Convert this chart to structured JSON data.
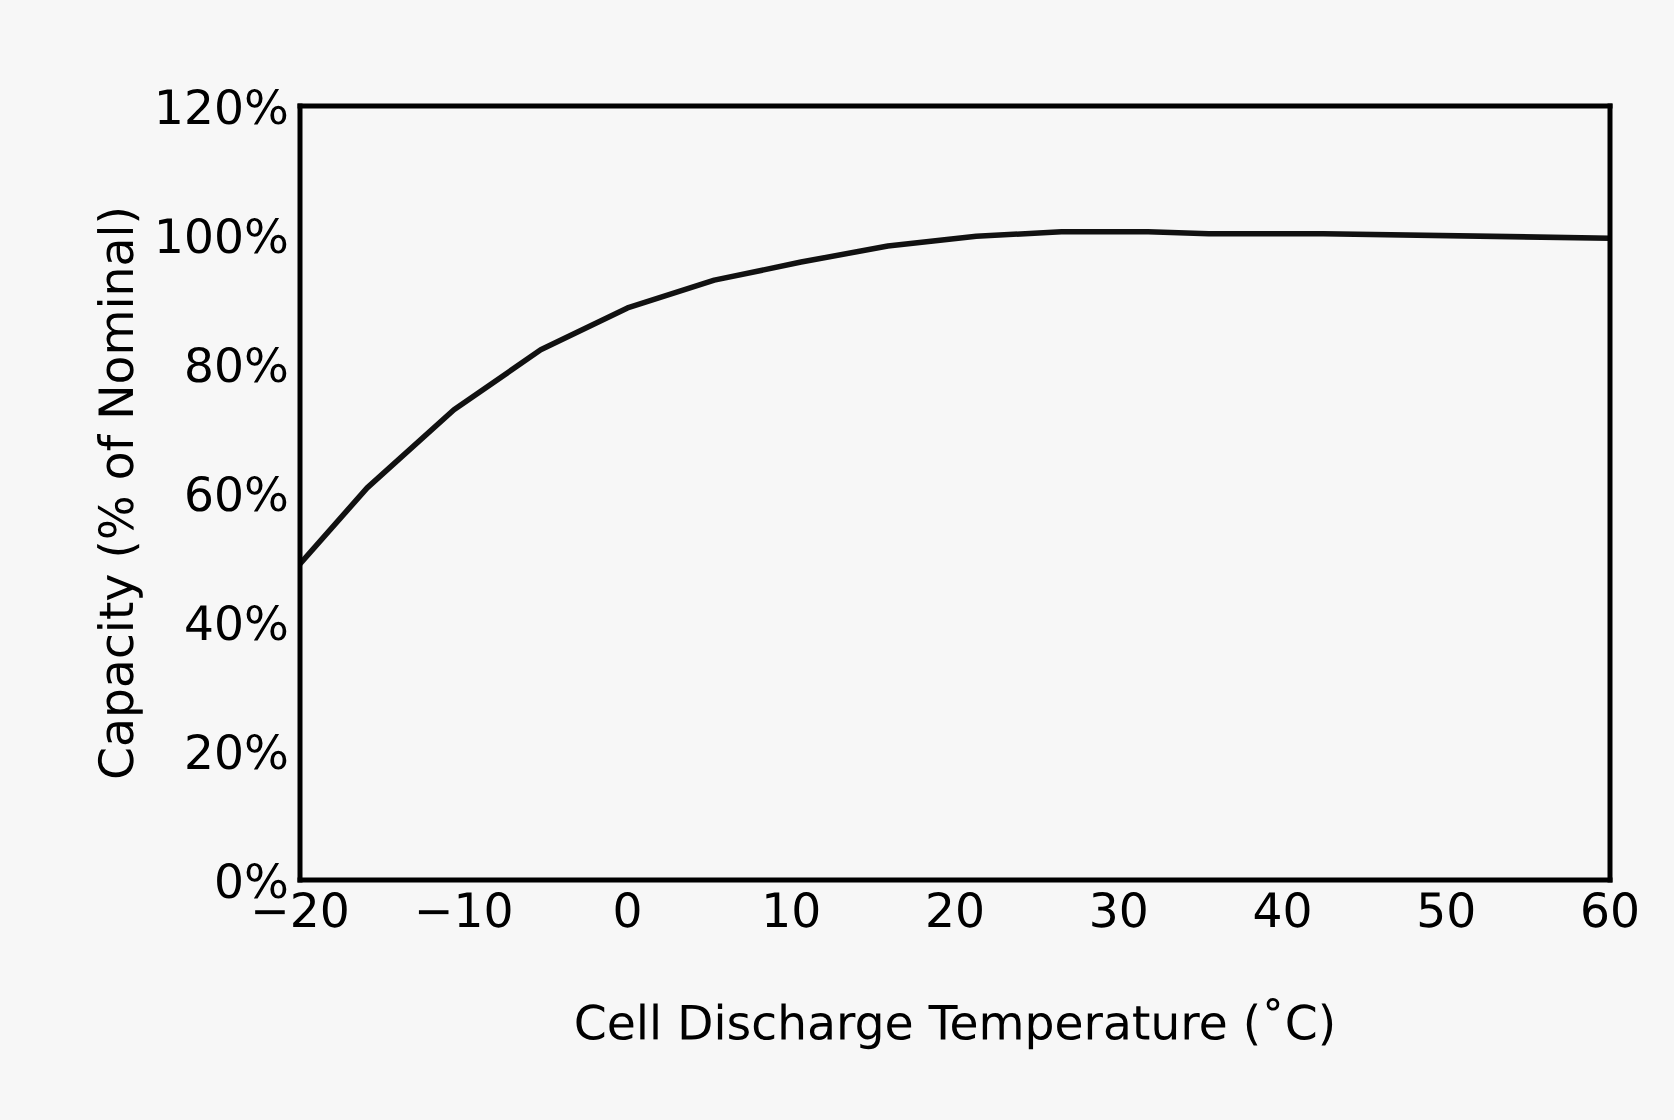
{
  "chart_data": {
    "type": "line",
    "xlabel": "Cell Discharge Temperature (˚C)",
    "ylabel": "Capacity (% of Nominal)",
    "x": [
      -20,
      -15.9,
      -10.6,
      -5.3,
      0,
      5.3,
      10.6,
      15.9,
      21.3,
      26.5,
      31.8,
      35.5,
      42.5,
      60
    ],
    "series": [
      {
        "color": "#111111",
        "values": [
          49,
          60.8,
          72.9,
          82.2,
          88.7,
          93,
          95.8,
          98.3,
          99.8,
          100.5,
          100.5,
          100.2,
          100.2,
          99.5
        ]
      }
    ],
    "xlim": [
      -20,
      60
    ],
    "xticks": [
      {
        "value": -20,
        "label": "−20"
      },
      {
        "value": -10,
        "label": "−10"
      },
      0,
      10,
      20,
      30,
      40,
      50,
      60
    ],
    "ylim": [
      0,
      120
    ],
    "yticks": [
      {
        "value": 0,
        "label": "0%"
      },
      {
        "value": 20,
        "label": "20%"
      },
      {
        "value": 40,
        "label": "40%"
      },
      {
        "value": 60,
        "label": "60%"
      },
      {
        "value": 80,
        "label": "80%"
      },
      {
        "value": 100,
        "label": "100%"
      },
      {
        "value": 120,
        "label": "120%"
      }
    ],
    "grid": false,
    "legend": false,
    "marker": "none",
    "line_style": "solid"
  }
}
